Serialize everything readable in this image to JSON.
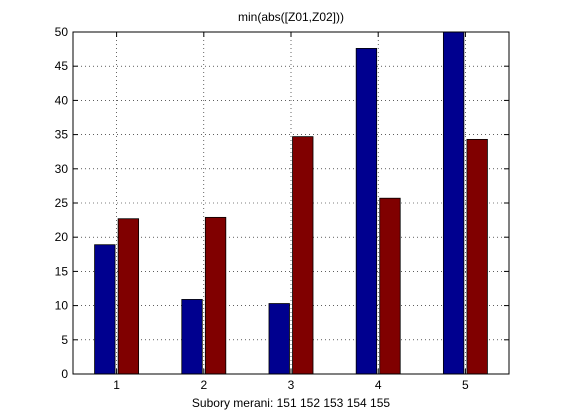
{
  "chart_data": {
    "type": "bar",
    "title": "min(abs([Z01,Z02]))",
    "xlabel": "Subory merani: 151 152 153 154 155",
    "ylabel": "",
    "categories": [
      "1",
      "2",
      "3",
      "4",
      "5"
    ],
    "series": [
      {
        "color": "#00008f",
        "values": [
          18.9,
          10.9,
          10.3,
          47.6,
          50.0
        ]
      },
      {
        "color": "#800000",
        "values": [
          22.7,
          22.9,
          34.7,
          25.7,
          34.3
        ]
      }
    ],
    "ylim": [
      0,
      50
    ],
    "yticks": [
      0,
      5,
      10,
      15,
      20,
      25,
      30,
      35,
      40,
      45,
      50
    ],
    "grid": true,
    "grid_style": "dotted"
  }
}
